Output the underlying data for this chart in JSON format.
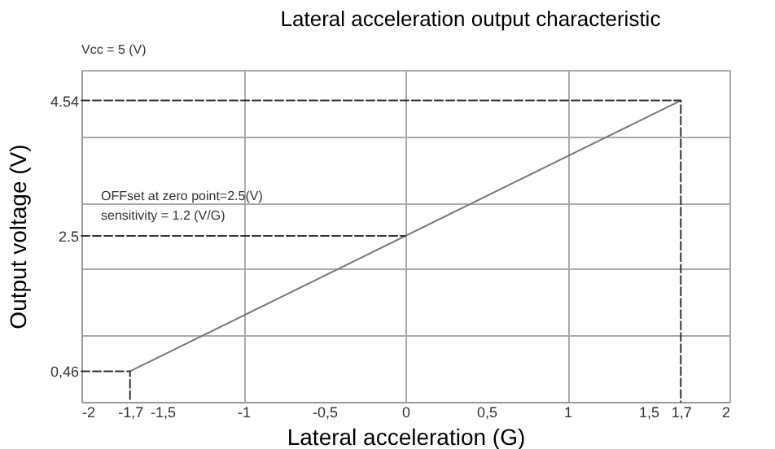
{
  "chart_data": {
    "type": "line",
    "title": "Lateral acceleration output characteristic",
    "xlabel": "Lateral acceleration (G)",
    "ylabel": "Output voltage (V)",
    "annotations": [
      "Vcc = 5 (V)",
      "OFFset at zero point=2.5(V)",
      "sensitivity = 1.2 (V/G)"
    ],
    "series": [
      {
        "x": [
          -1.7,
          1.7
        ],
        "values": [
          0.46,
          4.54
        ],
        "color": "#777777",
        "line_style": "solid"
      },
      {
        "type": "line",
        "x": [
          -2,
          -1.7,
          -1.7
        ],
        "values": [
          0.46,
          0.46,
          0
        ],
        "color": "#333333",
        "line_style": "dashed"
      },
      {
        "type": "line",
        "x": [
          -2,
          0
        ],
        "values": [
          2.5,
          2.5
        ],
        "color": "#333333",
        "line_style": "dashed"
      },
      {
        "type": "line",
        "x": [
          -2,
          1.7,
          1.7
        ],
        "values": [
          4.54,
          4.54,
          0
        ],
        "color": "#333333",
        "line_style": "dashed"
      }
    ],
    "xlim": [
      -2,
      2
    ],
    "ylim": [
      0,
      5
    ],
    "xticks": [
      -2,
      {
        "value": -1.7,
        "label": "-1,7"
      },
      {
        "value": -1.5,
        "label": "-1,5"
      },
      -1,
      {
        "value": -0.5,
        "label": "-0,5"
      },
      0,
      {
        "value": 0.5,
        "label": "0,5"
      },
      1,
      {
        "value": 1.5,
        "label": "1,5"
      },
      {
        "value": 1.7,
        "label": "1,7"
      },
      2
    ],
    "yticks": [
      {
        "value": 0,
        "label": null
      },
      {
        "value": 0.46,
        "label": "0,46"
      },
      {
        "value": 1,
        "label": null
      },
      {
        "value": 2,
        "label": null
      },
      {
        "value": 2.5,
        "label": "2.5"
      },
      {
        "value": 3,
        "label": null
      },
      {
        "value": 4,
        "label": null
      },
      {
        "value": 4.54,
        "label": "4.54"
      },
      {
        "value": 5,
        "label": null
      }
    ],
    "grid": true,
    "marker": "none"
  }
}
